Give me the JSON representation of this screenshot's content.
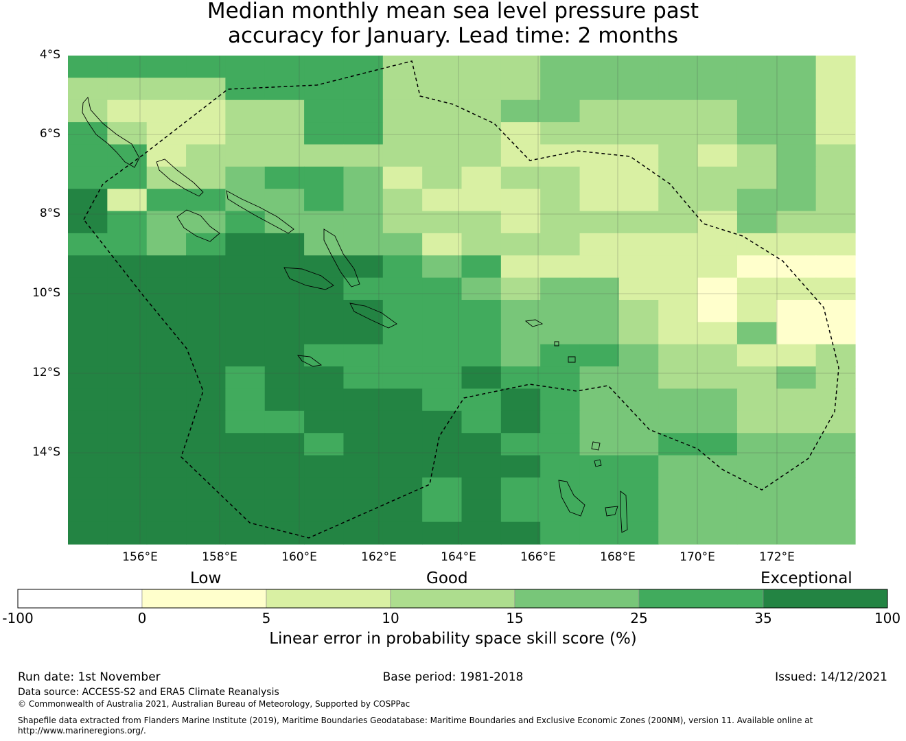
{
  "title": {
    "line1": "Median monthly mean sea level pressure past",
    "line2": "accuracy for January. Lead time: 2 months"
  },
  "map": {
    "lat_labels": [
      "4°S",
      "6°S",
      "8°S",
      "10°S",
      "12°S",
      "14°S"
    ],
    "lon_labels": [
      "156°E",
      "158°E",
      "160°E",
      "162°E",
      "164°E",
      "166°E",
      "168°E",
      "170°E",
      "172°E"
    ],
    "lat_range": [
      -16.3,
      -4.0
    ],
    "lon_range": [
      154.2,
      174.0
    ],
    "palette": [
      "#ffffcc",
      "#d9f0a3",
      "#addd8e",
      "#78c679",
      "#41ab5d",
      "#238443"
    ],
    "grid_rows": [
      "44444444222233333331",
      "22224444222233333331",
      "21112244222332222331",
      "42112244222122222331",
      "44122222222111121232",
      "44223443121221122232",
      "51443343211121122332",
      "54334333222122221322",
      "44345533312221111111",
      "55555555434111111000",
      "55555554443233110111",
      "55555555444333210100",
      "55555555444333211300",
      "55555544444344322112",
      "55554554445443322232",
      "55554555544543333222",
      "55554455554543333222",
      "55555545555443344333",
      "55555555555544433333",
      "55555555545444433333",
      "55555555545444433333",
      "55555555555544433333"
    ]
  },
  "colorbar": {
    "category_labels": [
      "Low",
      "Good",
      "Exceptional"
    ],
    "ticks": [
      "-100",
      "0",
      "5",
      "10",
      "15",
      "25",
      "35",
      "100"
    ],
    "colors": [
      "#ffffff",
      "#ffffcc",
      "#d9f0a3",
      "#addd8e",
      "#78c679",
      "#41ab5d",
      "#238443"
    ],
    "title": "Linear error in probability space skill score (%)"
  },
  "footer": {
    "run_date": "Run date: 1st November",
    "base_period": "Base period: 1981-2018",
    "issued": "Issued: 14/12/2021",
    "data_source": "Data source: ACCESS-S2 and ERA5 Climate Reanalysis",
    "copyright": "© Commonwealth of Australia 2021, Australian Bureau of Meteorology, Supported by COSPPac",
    "shapefile_line1": "Shapefile data extracted from Flanders Marine Institute (2019), Maritime Boundaries Geodatabase: Maritime Boundaries and Exclusive Economic Zones (200NM), version 11. Available online at",
    "shapefile_line2": "http://www.marineregions.org/."
  }
}
